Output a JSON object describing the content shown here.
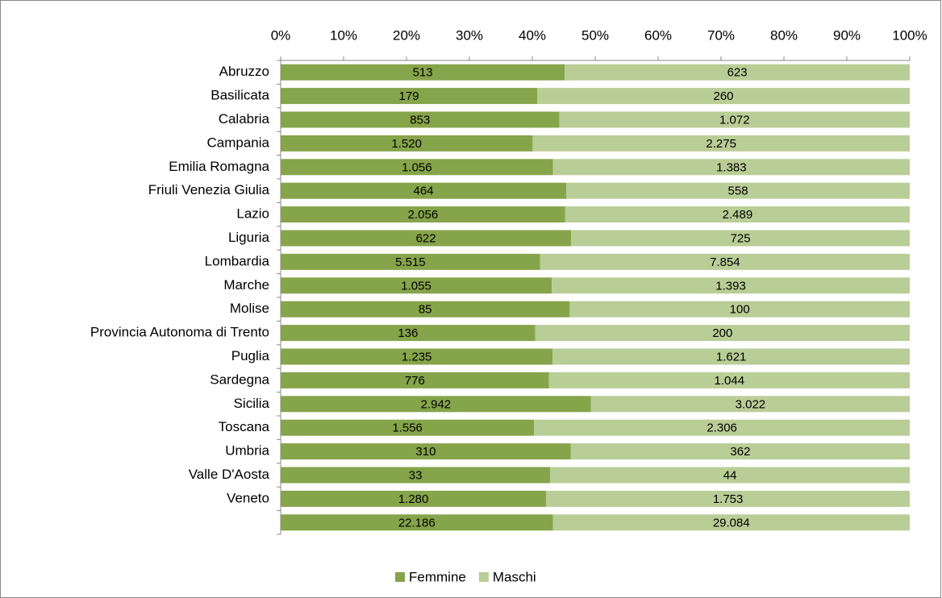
{
  "chart_data": {
    "type": "bar",
    "orientation": "horizontal",
    "stacking": "percent",
    "categories": [
      "Abruzzo",
      "Basilicata",
      "Calabria",
      "Campania",
      "Emilia Romagna",
      "Friuli Venezia Giulia",
      "Lazio",
      "Liguria",
      "Lombardia",
      "Marche",
      "Molise",
      "Provincia Autonoma di Trento",
      "Puglia",
      "Sardegna",
      "Sicilia",
      "Toscana",
      "Umbria",
      "Valle D'Aosta",
      "Veneto",
      null
    ],
    "series": [
      {
        "name": "Femmine",
        "color": "#86a44a",
        "values": [
          513,
          179,
          853,
          1520,
          1056,
          464,
          2056,
          622,
          5515,
          1055,
          85,
          136,
          1235,
          776,
          2942,
          1556,
          310,
          33,
          1280,
          22186
        ],
        "value_labels": [
          "513",
          "179",
          "853",
          "1.520",
          "1.056",
          "464",
          "2.056",
          "622",
          "5.515",
          "1.055",
          "85",
          "136",
          "1.235",
          "776",
          "2.942",
          "1.556",
          "310",
          "33",
          "1.280",
          "22.186"
        ]
      },
      {
        "name": "Maschi",
        "color": "#b9cd96",
        "values": [
          623,
          260,
          1072,
          2275,
          1383,
          558,
          2489,
          725,
          7854,
          1393,
          100,
          200,
          1621,
          1044,
          3022,
          2306,
          362,
          44,
          1753,
          29084
        ],
        "value_labels": [
          "623",
          "260",
          "1.072",
          "2.275",
          "1.383",
          "558",
          "2.489",
          "725",
          "7.854",
          "1.393",
          "100",
          "200",
          "1.621",
          "1.044",
          "3.022",
          "2.306",
          "362",
          "44",
          "1.753",
          "29.084"
        ]
      }
    ],
    "xlim": [
      0,
      100
    ],
    "xticks": [
      {
        "value": 0,
        "label": "0%"
      },
      {
        "value": 10,
        "label": "10%"
      },
      {
        "value": 20,
        "label": "20%"
      },
      {
        "value": 30,
        "label": "30%"
      },
      {
        "value": 40,
        "label": "40%"
      },
      {
        "value": 50,
        "label": "50%"
      },
      {
        "value": 60,
        "label": "60%"
      },
      {
        "value": 70,
        "label": "70%"
      },
      {
        "value": 80,
        "label": "80%"
      },
      {
        "value": 90,
        "label": "90%"
      },
      {
        "value": 100,
        "label": "100%"
      }
    ],
    "legend": "bottom"
  }
}
